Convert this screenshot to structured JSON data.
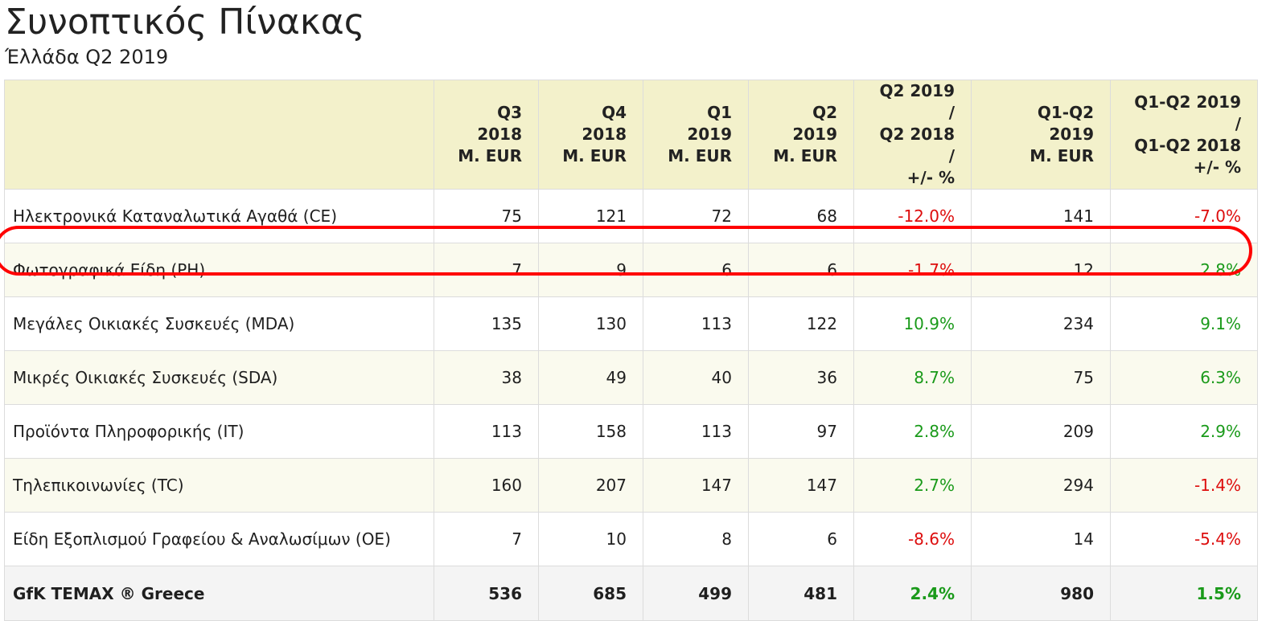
{
  "title": "Συνοπτικός Πίνακας",
  "subtitle": "Έλλάδα Q2 2019",
  "highlight_color": "#ff0000",
  "positive_color": "#1a9a1a",
  "negative_color": "#dd0d0d",
  "header_color": "#f3f1cb",
  "chart_data": {
    "type": "table",
    "title": "Συνοπτικός Πίνακας",
    "subtitle": "Έλλάδα Q2 2019",
    "columns": [
      "",
      "Q3 2018\nM. EUR",
      "Q4 2018\nM. EUR",
      "Q1 2019\nM. EUR",
      "Q2 2019\nM. EUR",
      "Q2 2019 /\nQ2 2018 /\n+/- %",
      "Q1-Q2 2019\nM. EUR",
      "Q1-Q2 2019 /\nQ1-Q2 2018\n+/- %"
    ],
    "rows": [
      {
        "label": "Ηλεκτρονικά Καταναλωτικά Αγαθά (CE)",
        "values": [
          "75",
          "121",
          "72",
          "68",
          "-12.0%",
          "141",
          "-7.0%"
        ],
        "highlighted": false
      },
      {
        "label": "Φωτογραφικά Είδη (PH)",
        "values": [
          "7",
          "9",
          "6",
          "6",
          "-1.7%",
          "12",
          "2.8%"
        ],
        "highlighted": true
      },
      {
        "label": "Μεγάλες Οικιακές Συσκευές (MDA)",
        "values": [
          "135",
          "130",
          "113",
          "122",
          "10.9%",
          "234",
          "9.1%"
        ],
        "highlighted": false
      },
      {
        "label": "Μικρές Οικιακές Συσκευές (SDA)",
        "values": [
          "38",
          "49",
          "40",
          "36",
          "8.7%",
          "75",
          "6.3%"
        ],
        "highlighted": false
      },
      {
        "label": "Προϊόντα Πληροφορικής (IT)",
        "values": [
          "113",
          "158",
          "113",
          "97",
          "2.8%",
          "209",
          "2.9%"
        ],
        "highlighted": false
      },
      {
        "label": "Τηλεπικοινωνίες (TC)",
        "values": [
          "160",
          "207",
          "147",
          "147",
          "2.7%",
          "294",
          "-1.4%"
        ],
        "highlighted": false
      },
      {
        "label": "Είδη Εξοπλισμού Γραφείου & Αναλωσίμων (OE)",
        "values": [
          "7",
          "10",
          "8",
          "6",
          "-8.6%",
          "14",
          "-5.4%"
        ],
        "highlighted": false
      },
      {
        "label": "GfK TEMAX ® Greece",
        "values": [
          "536",
          "685",
          "499",
          "481",
          "2.4%",
          "980",
          "1.5%"
        ],
        "highlighted": false,
        "total": true
      }
    ]
  }
}
